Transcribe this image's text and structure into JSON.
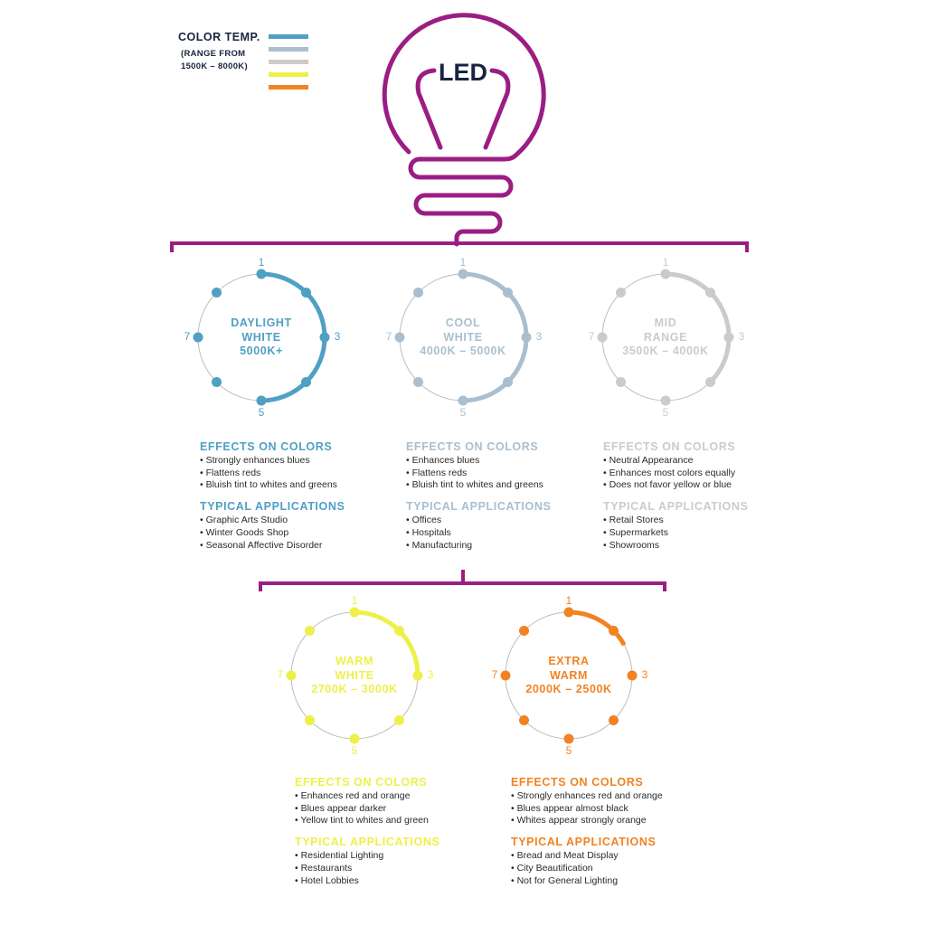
{
  "header": {
    "bulb_text": "LED",
    "legend_title": "COLOR TEMP.",
    "legend_subtitle_1": "(RANGE FROM",
    "legend_subtitle_2": "1500K – 8000K)",
    "legend_colors": [
      "#4fa0c4",
      "#a9bfcf",
      "#cdcaca",
      "#eef04a",
      "#f28222"
    ]
  },
  "brand_color": "#9b1d84",
  "positions": [
    "1",
    "3",
    "5",
    "7"
  ],
  "groups": [
    {
      "line1": "DAYLIGHT",
      "line2": "WHITE",
      "range": "5000K+",
      "color": "#4fa0c4",
      "arc_fraction": 0.5,
      "effects_title": "EFFECTS ON COLORS",
      "effects": [
        "Strongly enhances blues",
        "Flattens reds",
        "Bluish tint to whites and greens"
      ],
      "apps_title": "TYPICAL APPLICATIONS",
      "apps": [
        "Graphic Arts Studio",
        "Winter Goods Shop",
        "Seasonal Affective Disorder"
      ]
    },
    {
      "line1": "COOL",
      "line2": "WHITE",
      "range": "4000K – 5000K",
      "color": "#a9bfcf",
      "arc_fraction": 0.5,
      "effects_title": "EFFECTS ON COLORS",
      "effects": [
        "Enhances blues",
        "Flattens reds",
        "Bluish tint to whites and greens"
      ],
      "apps_title": "TYPICAL APPLICATIONS",
      "apps": [
        "Offices",
        "Hospitals",
        "Manufacturing"
      ]
    },
    {
      "line1": "MID",
      "line2": "RANGE",
      "range": "3500K – 4000K",
      "color": "#cdcaca",
      "arc_fraction": 0.375,
      "effects_title": "EFFECTS ON COLORS",
      "effects": [
        "Neutral Appearance",
        "Enhances most colors equally",
        "Does not favor yellow or blue"
      ],
      "apps_title": "TYPICAL APPLICATIONS",
      "apps": [
        "Retail Stores",
        "Supermarkets",
        "Showrooms"
      ]
    },
    {
      "line1": "WARM",
      "line2": "WHITE",
      "range": "2700K – 3000K",
      "color": "#eef04a",
      "arc_fraction": 0.25,
      "effects_title": "EFFECTS ON COLORS",
      "effects": [
        "Enhances red and orange",
        "Blues appear darker",
        "Yellow tint to whites and green"
      ],
      "apps_title": "TYPICAL APPLICATIONS",
      "apps": [
        "Residential Lighting",
        "Restaurants",
        "Hotel Lobbies"
      ]
    },
    {
      "line1": "EXTRA",
      "line2": "WARM",
      "range": "2000K – 2500K",
      "color": "#f28222",
      "arc_fraction": 0.17,
      "effects_title": "EFFECTS ON COLORS",
      "effects": [
        "Strongly enhances red and orange",
        "Blues appear almost black",
        "Whites appear strongly orange"
      ],
      "apps_title": "TYPICAL APPLICATIONS",
      "apps": [
        "Bread and Meat Display",
        "City Beautification",
        "Not for General Lighting"
      ]
    }
  ]
}
